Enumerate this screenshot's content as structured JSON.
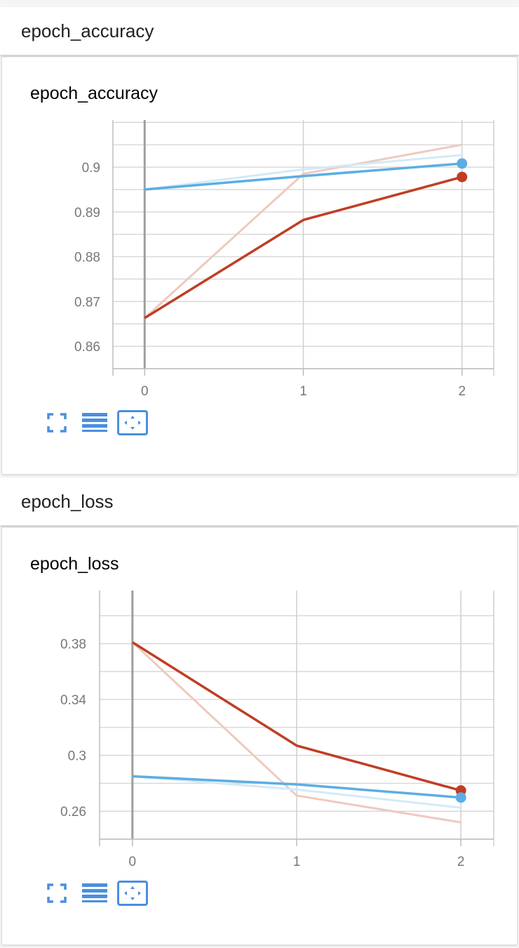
{
  "sections": [
    {
      "header": "epoch_accuracy",
      "card_title": "epoch_accuracy"
    },
    {
      "header": "epoch_loss",
      "card_title": "epoch_loss"
    }
  ],
  "toolbar": {
    "fullscreen_icon": "fullscreen-icon",
    "legend_icon": "list-icon",
    "fit_icon": "fit-domain-icon"
  },
  "colors": {
    "train": "#bf3e24",
    "train_raw": "#efc9bf",
    "validation": "#5baee3",
    "validation_raw": "#d3eaf8",
    "accent": "#4a8fdf"
  },
  "chart_data": [
    {
      "type": "line",
      "title": "epoch_accuracy",
      "xlabel": "",
      "ylabel": "",
      "x": [
        0,
        1,
        2
      ],
      "xlim": [
        -0.2,
        2.2
      ],
      "ylim": [
        0.855,
        0.9105
      ],
      "xticks": [
        "0",
        "1",
        "2"
      ],
      "yticks": [
        0.86,
        0.87,
        0.88,
        0.89,
        0.9
      ],
      "ytick_labels": [
        "0.86",
        "0.87",
        "0.88",
        "0.89",
        "0.9"
      ],
      "grid": true,
      "series": [
        {
          "color": "#bf3e24",
          "values": [
            0.8663,
            0.8882,
            0.8978
          ],
          "smoothed": true,
          "marker_last": true
        },
        {
          "color": "#efc9bf",
          "values": [
            0.8663,
            0.8985,
            0.905
          ],
          "smoothed": false,
          "marker_last": false
        },
        {
          "color": "#5baee3",
          "values": [
            0.895,
            0.898,
            0.9008
          ],
          "smoothed": true,
          "marker_last": true
        },
        {
          "color": "#d3eaf8",
          "values": [
            0.895,
            0.8995,
            0.9027
          ],
          "smoothed": false,
          "marker_last": false
        }
      ]
    },
    {
      "type": "line",
      "title": "epoch_loss",
      "xlabel": "",
      "ylabel": "",
      "x": [
        0,
        1,
        2
      ],
      "xlim": [
        -0.2,
        2.2
      ],
      "ylim": [
        0.24,
        0.418
      ],
      "xticks": [
        "0",
        "1",
        "2"
      ],
      "yticks": [
        0.26,
        0.3,
        0.34,
        0.38
      ],
      "ytick_labels": [
        "0.26",
        "0.3",
        "0.34",
        "0.38"
      ],
      "grid": true,
      "series": [
        {
          "color": "#bf3e24",
          "values": [
            0.381,
            0.307,
            0.2748
          ],
          "smoothed": true,
          "marker_last": true
        },
        {
          "color": "#efc9bf",
          "values": [
            0.381,
            0.2712,
            0.252
          ],
          "smoothed": false,
          "marker_last": false
        },
        {
          "color": "#5baee3",
          "values": [
            0.285,
            0.2792,
            0.2698
          ],
          "smoothed": true,
          "marker_last": true
        },
        {
          "color": "#d3eaf8",
          "values": [
            0.285,
            0.2755,
            0.2625
          ],
          "smoothed": false,
          "marker_last": false
        }
      ]
    }
  ]
}
